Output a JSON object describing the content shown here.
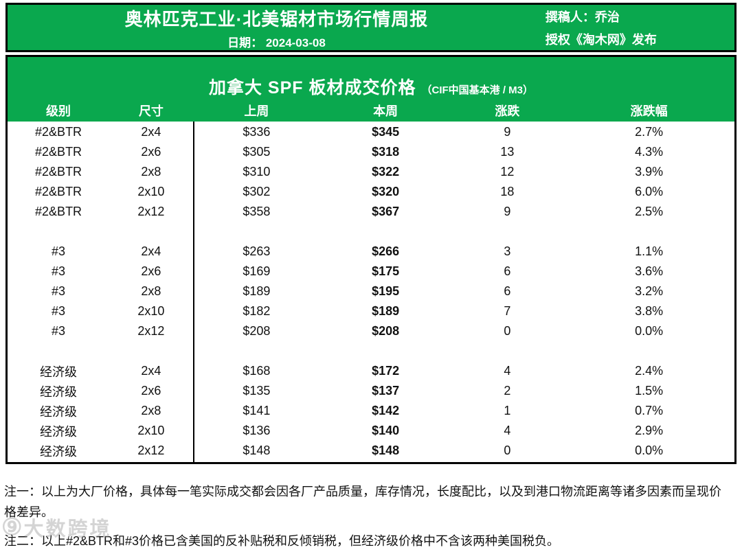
{
  "colors": {
    "header_green": "#0aa84e",
    "border_black": "#000000",
    "text_white": "#ffffff"
  },
  "header": {
    "title": "奥林匹克工业·北美锯材市场行情周报",
    "date": "日期： 2024-03-08",
    "author": "撰稿人：乔治",
    "authorization": "授权《淘木网》发布"
  },
  "table": {
    "title": "加拿大 SPF 板材成交价格",
    "subtitle": "（CIF中国基本港 / M3）",
    "columns": [
      "级别",
      "尺寸",
      "上周",
      "本周",
      "涨跌",
      "涨跌幅"
    ],
    "groups": [
      {
        "grade": "#2&BTR",
        "rows": [
          [
            "#2&BTR",
            "2x4",
            "$336",
            "$345",
            "9",
            "2.7%"
          ],
          [
            "#2&BTR",
            "2x6",
            "$305",
            "$318",
            "13",
            "4.3%"
          ],
          [
            "#2&BTR",
            "2x8",
            "$310",
            "$322",
            "12",
            "3.9%"
          ],
          [
            "#2&BTR",
            "2x10",
            "$302",
            "$320",
            "18",
            "6.0%"
          ],
          [
            "#2&BTR",
            "2x12",
            "$358",
            "$367",
            "9",
            "2.5%"
          ]
        ]
      },
      {
        "grade": "#3",
        "rows": [
          [
            "#3",
            "2x4",
            "$263",
            "$266",
            "3",
            "1.1%"
          ],
          [
            "#3",
            "2x6",
            "$169",
            "$175",
            "6",
            "3.6%"
          ],
          [
            "#3",
            "2x8",
            "$189",
            "$195",
            "6",
            "3.2%"
          ],
          [
            "#3",
            "2x10",
            "$182",
            "$189",
            "7",
            "3.8%"
          ],
          [
            "#3",
            "2x12",
            "$208",
            "$208",
            "0",
            "0.0%"
          ]
        ]
      },
      {
        "grade": "经济级",
        "rows": [
          [
            "经济级",
            "2x4",
            "$168",
            "$172",
            "4",
            "2.4%"
          ],
          [
            "经济级",
            "2x6",
            "$135",
            "$137",
            "2",
            "1.5%"
          ],
          [
            "经济级",
            "2x8",
            "$141",
            "$142",
            "1",
            "0.7%"
          ],
          [
            "经济级",
            "2x10",
            "$136",
            "$140",
            "4",
            "2.9%"
          ],
          [
            "经济级",
            "2x12",
            "$148",
            "$148",
            "0",
            "0.0%"
          ]
        ]
      }
    ]
  },
  "notes": [
    "注一：以上为大厂价格，具体每一笔实际成交都会因各厂产品质量，库存情况，长度配比，以及到港口物流距离等诸多因素而呈现价格差异。",
    "注二：以上#2&BTR和#3价格已含美国的反补贴税和反倾销税，但经济级价格中不含该两种美国税负。"
  ],
  "watermark": {
    "logo_glyph": "⑨",
    "text": "大数跨境"
  }
}
